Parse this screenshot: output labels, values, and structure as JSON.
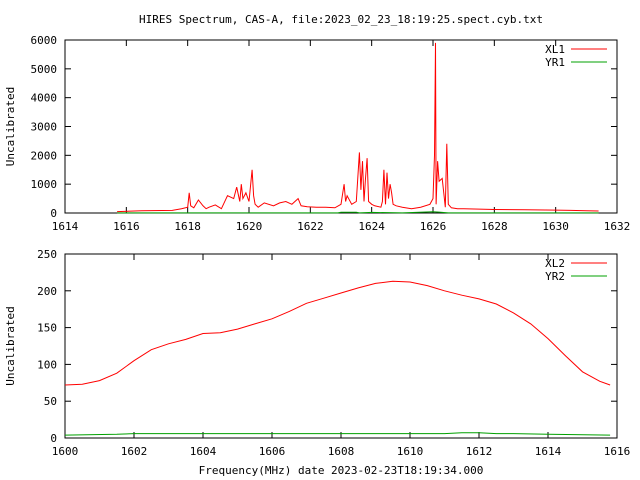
{
  "title": "HIRES Spectrum, CAS-A, file:2023_02_23_18:19:25.spect.cyb.txt",
  "xlabel": "Frequency(MHz) date 2023-02-23T18:19:34.000",
  "colors": {
    "series1": "#ff0000",
    "series2": "#00a000",
    "axis": "#000000"
  },
  "chart_data": [
    {
      "type": "line",
      "ylabel": "Uncalibrated",
      "xlim": [
        1614,
        1632
      ],
      "ylim": [
        0,
        6000
      ],
      "xticks": [
        1614,
        1616,
        1618,
        1620,
        1622,
        1624,
        1626,
        1628,
        1630,
        1632
      ],
      "yticks": [
        0,
        1000,
        2000,
        3000,
        4000,
        5000,
        6000
      ],
      "legend_position": "top-right",
      "series": [
        {
          "name": "XL1",
          "color": "#ff0000",
          "x": [
            1615.7,
            1616.5,
            1617.5,
            1617.8,
            1618.0,
            1618.05,
            1618.1,
            1618.2,
            1618.35,
            1618.5,
            1618.6,
            1618.7,
            1618.9,
            1619.1,
            1619.3,
            1619.5,
            1619.6,
            1619.7,
            1619.75,
            1619.8,
            1619.9,
            1620.0,
            1620.1,
            1620.15,
            1620.2,
            1620.3,
            1620.5,
            1620.8,
            1621.0,
            1621.2,
            1621.4,
            1621.6,
            1621.7,
            1621.9,
            1622.2,
            1622.5,
            1622.8,
            1623.0,
            1623.1,
            1623.15,
            1623.2,
            1623.35,
            1623.5,
            1623.6,
            1623.65,
            1623.7,
            1623.75,
            1623.8,
            1623.85,
            1623.9,
            1624.0,
            1624.1,
            1624.3,
            1624.35,
            1624.4,
            1624.45,
            1624.5,
            1624.55,
            1624.6,
            1624.65,
            1624.7,
            1624.8,
            1625.0,
            1625.3,
            1625.6,
            1625.9,
            1626.0,
            1626.05,
            1626.08,
            1626.1,
            1626.15,
            1626.2,
            1626.3,
            1626.4,
            1626.45,
            1626.5,
            1626.6,
            1626.8,
            1627.0,
            1628.0,
            1629.0,
            1630.0,
            1630.5,
            1631.0,
            1631.4
          ],
          "y": [
            50,
            80,
            90,
            150,
            200,
            700,
            250,
            180,
            450,
            250,
            150,
            200,
            280,
            150,
            600,
            500,
            900,
            400,
            1000,
            500,
            700,
            400,
            1500,
            600,
            300,
            200,
            350,
            250,
            350,
            400,
            300,
            500,
            250,
            220,
            200,
            200,
            180,
            300,
            1000,
            400,
            600,
            300,
            400,
            2100,
            800,
            1800,
            400,
            1200,
            1900,
            400,
            300,
            250,
            200,
            400,
            1500,
            300,
            1400,
            500,
            1000,
            700,
            300,
            250,
            200,
            150,
            200,
            300,
            500,
            2000,
            5900,
            300,
            1800,
            1100,
            1200,
            200,
            2400,
            300,
            180,
            150,
            150,
            120,
            110,
            100,
            90,
            80,
            70
          ]
        },
        {
          "name": "YR1",
          "color": "#00a000",
          "x": [
            1615.7,
            1620,
            1622.9,
            1623.0,
            1623.5,
            1623.6,
            1624.0,
            1625.0,
            1626.0,
            1626.2,
            1626.5,
            1628,
            1631.4
          ],
          "y": [
            5,
            5,
            5,
            25,
            25,
            5,
            20,
            5,
            40,
            30,
            5,
            5,
            5
          ]
        }
      ]
    },
    {
      "type": "line",
      "ylabel": "Uncalibrated",
      "xlim": [
        1600,
        1616
      ],
      "ylim": [
        0,
        250
      ],
      "xticks": [
        1600,
        1602,
        1604,
        1606,
        1608,
        1610,
        1612,
        1614,
        1616
      ],
      "yticks": [
        0,
        50,
        100,
        150,
        200,
        250
      ],
      "legend_position": "top-right",
      "series": [
        {
          "name": "XL2",
          "color": "#ff0000",
          "x": [
            1600.0,
            1600.5,
            1601.0,
            1601.5,
            1602.0,
            1602.5,
            1603.0,
            1603.5,
            1604.0,
            1604.5,
            1605.0,
            1605.5,
            1606.0,
            1606.5,
            1607.0,
            1607.5,
            1608.0,
            1608.5,
            1609.0,
            1609.5,
            1610.0,
            1610.5,
            1611.0,
            1611.5,
            1612.0,
            1612.5,
            1613.0,
            1613.5,
            1614.0,
            1614.5,
            1615.0,
            1615.5,
            1615.8
          ],
          "y": [
            72,
            73,
            78,
            88,
            105,
            120,
            128,
            134,
            142,
            143,
            148,
            155,
            162,
            172,
            183,
            190,
            197,
            204,
            210,
            213,
            212,
            207,
            200,
            194,
            189,
            182,
            170,
            155,
            135,
            112,
            90,
            77,
            72
          ]
        },
        {
          "name": "YR2",
          "color": "#00a000",
          "x": [
            1600.0,
            1601.5,
            1602.0,
            1608.0,
            1611.0,
            1611.5,
            1612.0,
            1612.5,
            1613.0,
            1614.0,
            1615.8
          ],
          "y": [
            4,
            5,
            6,
            6,
            6,
            7,
            7,
            6,
            6,
            5,
            4
          ]
        }
      ]
    }
  ]
}
